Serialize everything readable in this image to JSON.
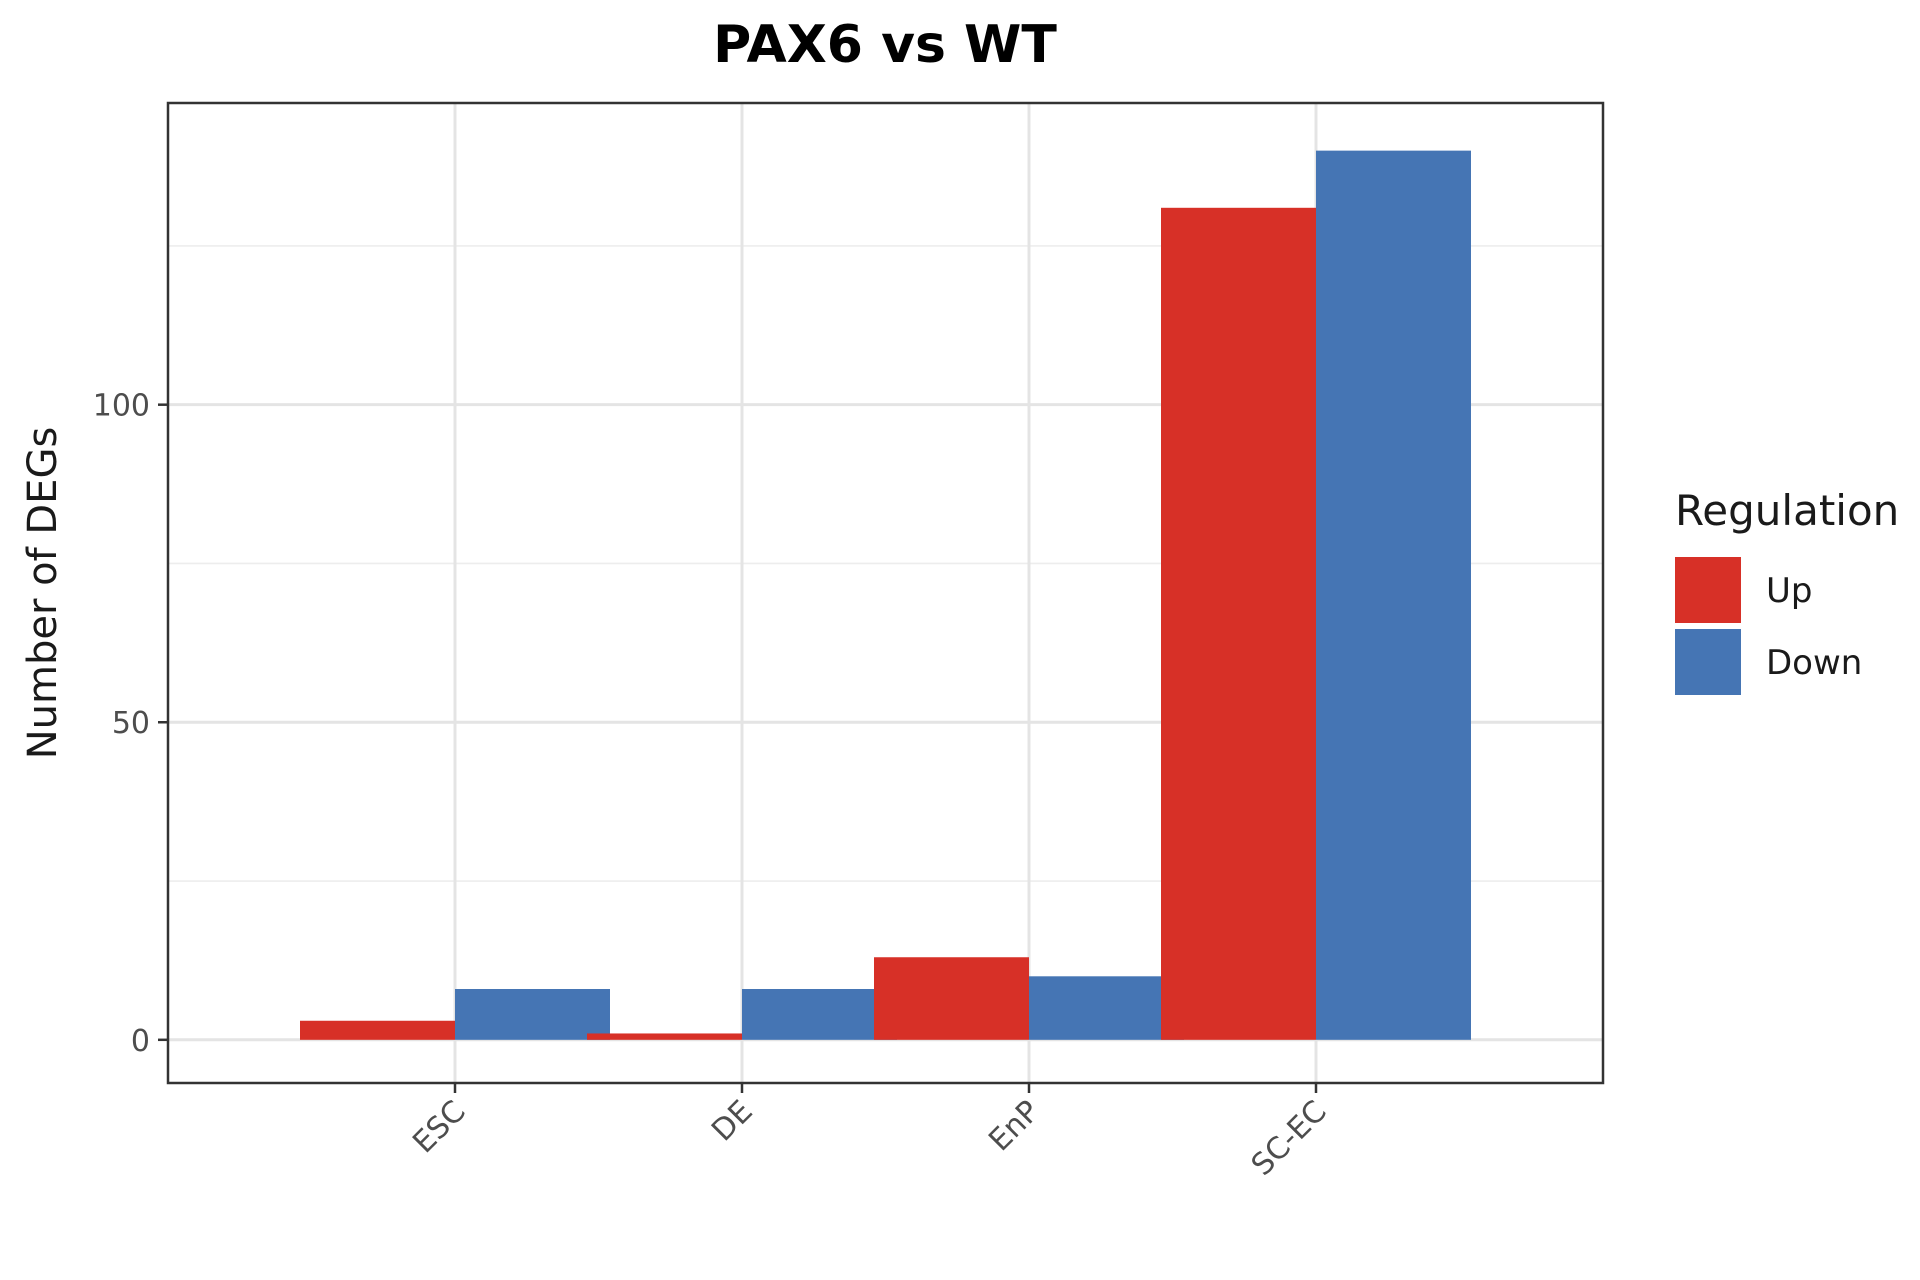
{
  "chart_data": {
    "type": "bar",
    "title": "PAX6 vs WT",
    "xlabel": "",
    "ylabel": "Number of DEGs",
    "categories": [
      "ESC",
      "DE",
      "EnP",
      "SC-EC"
    ],
    "series": [
      {
        "name": "Up",
        "color": "#D73027",
        "values": [
          3,
          1,
          13,
          131
        ]
      },
      {
        "name": "Down",
        "color": "#4575B4",
        "values": [
          8,
          8,
          10,
          140
        ]
      }
    ],
    "ylim": [
      -6.8,
      147.5
    ],
    "yticks": [
      0,
      50,
      100
    ],
    "ytick_labels": [
      "0",
      "50",
      "100"
    ],
    "grid": true,
    "legend": {
      "title": "Regulation",
      "position": "right"
    }
  }
}
